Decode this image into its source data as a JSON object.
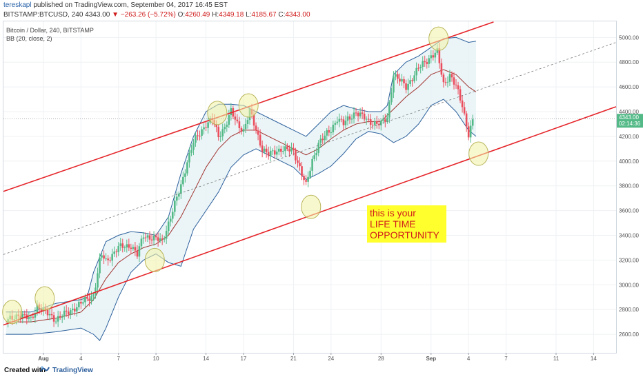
{
  "header": {
    "user": "tereskapl",
    "published": "published on TradingView.com, September 04, 2017 16:45 EST",
    "symbol": "BITSTAMP:BTCUSD, 240",
    "last": "4343.00",
    "change": "−263.26 (−5.72%)",
    "open_label": "O:",
    "open": "4260.49",
    "high_label": "H:",
    "high": "4349.18",
    "low_label": "L:",
    "low": "4185.67",
    "close_label": "C:",
    "close": "4343.00"
  },
  "legend": {
    "title": "Bitcoin / Dollar, 240, BITSTAMP",
    "indicator": "BB (20, close, 2)"
  },
  "callout": {
    "line1": "this is your",
    "line2": "LIFE TIME",
    "line3": "OPPORTUNITY"
  },
  "footer": {
    "created": "Created with",
    "brand": "TradingView"
  },
  "colors": {
    "bull": "#53b987",
    "bear": "#eb4d5c",
    "channel": "#e5262b",
    "bands": "#2b5f9b",
    "basis": "#a0322d",
    "highlight": "#f2f2a6",
    "callout_bg": "#ffff2e",
    "callout_text": "#d01b1b"
  },
  "chart_data": {
    "type": "candlestick",
    "title": "Bitcoin / Dollar, 240, BITSTAMP",
    "y_ticks": [
      2600,
      2800,
      3000,
      3200,
      3400,
      3600,
      3800,
      4000,
      4200,
      4400,
      4600,
      4800,
      5000
    ],
    "x_ticks": [
      {
        "day": 1,
        "label": "Aug"
      },
      {
        "day": 4,
        "label": "4"
      },
      {
        "day": 7,
        "label": "7"
      },
      {
        "day": 10,
        "label": "10"
      },
      {
        "day": 14,
        "label": "14"
      },
      {
        "day": 17,
        "label": "17"
      },
      {
        "day": 21,
        "label": "21"
      },
      {
        "day": 24,
        "label": "24"
      },
      {
        "day": 28,
        "label": "28"
      },
      {
        "day": 32,
        "label": "Sep"
      },
      {
        "day": 35,
        "label": "4"
      },
      {
        "day": 38,
        "label": "7"
      },
      {
        "day": 42,
        "label": "11"
      },
      {
        "day": 45,
        "label": "14"
      }
    ],
    "xlim": [
      -2.2,
      46.8
    ],
    "ylim": [
      2450,
      5130
    ],
    "last_price": "4343.00",
    "countdown": "02:14:36",
    "price_path": [
      [
        -2.0,
        2700
      ],
      [
        -1.0,
        2760
      ],
      [
        0.0,
        2720
      ],
      [
        0.5,
        2830
      ],
      [
        1.0,
        2790
      ],
      [
        2.0,
        2720
      ],
      [
        3.0,
        2780
      ],
      [
        4.0,
        2850
      ],
      [
        5.0,
        2920
      ],
      [
        5.3,
        3070
      ],
      [
        5.6,
        3250
      ],
      [
        6.0,
        3190
      ],
      [
        7.0,
        3300
      ],
      [
        8.0,
        3320
      ],
      [
        8.5,
        3240
      ],
      [
        9.0,
        3400
      ],
      [
        10.0,
        3370
      ],
      [
        10.5,
        3350
      ],
      [
        11.0,
        3500
      ],
      [
        11.5,
        3650
      ],
      [
        12.0,
        3800
      ],
      [
        12.5,
        4000
      ],
      [
        13.0,
        4150
      ],
      [
        14.0,
        4300
      ],
      [
        14.5,
        4340
      ],
      [
        15.0,
        4200
      ],
      [
        15.5,
        4280
      ],
      [
        16.0,
        4400
      ],
      [
        16.5,
        4300
      ],
      [
        17.0,
        4250
      ],
      [
        17.5,
        4400
      ],
      [
        18.0,
        4250
      ],
      [
        18.5,
        4100
      ],
      [
        19.0,
        4050
      ],
      [
        20.0,
        4100
      ],
      [
        21.0,
        4080
      ],
      [
        21.5,
        3950
      ],
      [
        22.0,
        3800
      ],
      [
        22.5,
        4000
      ],
      [
        23.0,
        4150
      ],
      [
        24.0,
        4250
      ],
      [
        24.5,
        4350
      ],
      [
        25.0,
        4300
      ],
      [
        26.0,
        4400
      ],
      [
        27.0,
        4320
      ],
      [
        28.0,
        4300
      ],
      [
        28.5,
        4350
      ],
      [
        29.0,
        4700
      ],
      [
        30.0,
        4600
      ],
      [
        31.0,
        4750
      ],
      [
        32.0,
        4850
      ],
      [
        32.5,
        4880
      ],
      [
        33.0,
        4620
      ],
      [
        33.5,
        4700
      ],
      [
        34.0,
        4600
      ],
      [
        34.5,
        4450
      ],
      [
        35.0,
        4220
      ],
      [
        35.4,
        4343
      ]
    ],
    "bollinger": {
      "period": 20,
      "stddev": 2,
      "upper": [
        [
          -2.0,
          2780
        ],
        [
          0.0,
          2780
        ],
        [
          2.0,
          2850
        ],
        [
          4.0,
          2880
        ],
        [
          4.5,
          2900
        ],
        [
          5.0,
          3100
        ],
        [
          6.0,
          3350
        ],
        [
          7.0,
          3400
        ],
        [
          8.0,
          3430
        ],
        [
          9.0,
          3420
        ],
        [
          10.0,
          3400
        ],
        [
          11.0,
          3550
        ],
        [
          12.0,
          3900
        ],
        [
          13.0,
          4200
        ],
        [
          14.0,
          4400
        ],
        [
          15.0,
          4460
        ],
        [
          16.0,
          4460
        ],
        [
          17.0,
          4450
        ],
        [
          18.0,
          4400
        ],
        [
          19.0,
          4350
        ],
        [
          20.0,
          4300
        ],
        [
          21.0,
          4250
        ],
        [
          22.0,
          4200
        ],
        [
          23.0,
          4300
        ],
        [
          24.0,
          4400
        ],
        [
          25.0,
          4450
        ],
        [
          26.0,
          4420
        ],
        [
          27.0,
          4400
        ],
        [
          28.0,
          4400
        ],
        [
          28.5,
          4450
        ],
        [
          29.0,
          4700
        ],
        [
          30.0,
          4800
        ],
        [
          31.0,
          4850
        ],
        [
          32.0,
          4920
        ],
        [
          33.0,
          4990
        ],
        [
          34.0,
          5000
        ],
        [
          35.0,
          4960
        ],
        [
          35.6,
          4970
        ]
      ],
      "basis": [
        [
          -2.0,
          2700
        ],
        [
          0.0,
          2700
        ],
        [
          2.0,
          2730
        ],
        [
          4.0,
          2780
        ],
        [
          5.0,
          2880
        ],
        [
          6.0,
          3050
        ],
        [
          7.0,
          3180
        ],
        [
          8.0,
          3250
        ],
        [
          9.0,
          3300
        ],
        [
          10.0,
          3330
        ],
        [
          11.0,
          3400
        ],
        [
          12.0,
          3550
        ],
        [
          13.0,
          3750
        ],
        [
          14.0,
          3950
        ],
        [
          15.0,
          4100
        ],
        [
          16.0,
          4200
        ],
        [
          17.0,
          4250
        ],
        [
          18.0,
          4250
        ],
        [
          19.0,
          4200
        ],
        [
          20.0,
          4150
        ],
        [
          21.0,
          4100
        ],
        [
          22.0,
          4050
        ],
        [
          23.0,
          4100
        ],
        [
          24.0,
          4180
        ],
        [
          25.0,
          4250
        ],
        [
          26.0,
          4300
        ],
        [
          27.0,
          4320
        ],
        [
          28.0,
          4320
        ],
        [
          29.0,
          4420
        ],
        [
          30.0,
          4520
        ],
        [
          31.0,
          4600
        ],
        [
          32.0,
          4700
        ],
        [
          33.0,
          4740
        ],
        [
          34.0,
          4700
        ],
        [
          35.0,
          4600
        ],
        [
          35.6,
          4560
        ]
      ],
      "lower": [
        [
          -2.0,
          2600
        ],
        [
          0.0,
          2600
        ],
        [
          2.0,
          2620
        ],
        [
          4.0,
          2650
        ],
        [
          5.0,
          2600
        ],
        [
          5.5,
          2550
        ],
        [
          6.0,
          2650
        ],
        [
          7.0,
          2900
        ],
        [
          8.0,
          3100
        ],
        [
          9.0,
          3200
        ],
        [
          10.0,
          3250
        ],
        [
          11.0,
          3180
        ],
        [
          12.0,
          3150
        ],
        [
          12.5,
          3300
        ],
        [
          13.0,
          3450
        ],
        [
          14.0,
          3600
        ],
        [
          15.0,
          3750
        ],
        [
          16.0,
          3950
        ],
        [
          17.0,
          4050
        ],
        [
          18.0,
          4100
        ],
        [
          19.0,
          4050
        ],
        [
          20.0,
          4000
        ],
        [
          21.0,
          3950
        ],
        [
          22.0,
          3850
        ],
        [
          23.0,
          3900
        ],
        [
          24.0,
          3960
        ],
        [
          25.0,
          4060
        ],
        [
          26.0,
          4180
        ],
        [
          27.0,
          4240
        ],
        [
          28.0,
          4220
        ],
        [
          29.0,
          4150
        ],
        [
          30.0,
          4200
        ],
        [
          31.0,
          4300
        ],
        [
          32.0,
          4450
        ],
        [
          33.0,
          4500
        ],
        [
          34.0,
          4400
        ],
        [
          35.0,
          4250
        ],
        [
          35.6,
          4200
        ]
      ]
    },
    "channel": {
      "upper": [
        [
          -2.2,
          3755
        ],
        [
          37.0,
          5125
        ]
      ],
      "lower": [
        [
          -2.2,
          2675
        ],
        [
          46.8,
          4440
        ]
      ],
      "median": [
        [
          -2.2,
          3245
        ],
        [
          46.8,
          4960
        ]
      ]
    },
    "highlighted_touches": [
      {
        "day": -1.5,
        "price": 2780
      },
      {
        "day": 1.1,
        "price": 2890
      },
      {
        "day": 9.9,
        "price": 3200
      },
      {
        "day": 14.9,
        "price": 4390
      },
      {
        "day": 17.4,
        "price": 4450
      },
      {
        "day": 22.4,
        "price": 3630
      },
      {
        "day": 32.6,
        "price": 4990
      },
      {
        "day": 35.8,
        "price": 4060
      }
    ]
  }
}
